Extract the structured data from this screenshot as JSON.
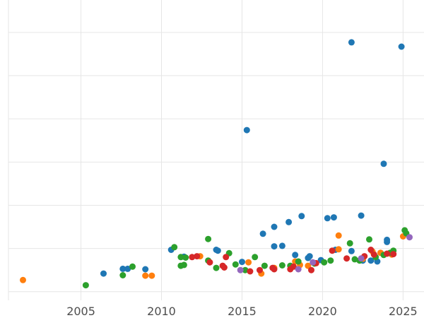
{
  "chart_data": {
    "type": "scatter",
    "title": "",
    "xlabel": "",
    "ylabel": "",
    "xlim": [
      2000.5,
      2026.3
    ],
    "ylim": [
      -0.2,
      6.75
    ],
    "x_ticks": [
      2005,
      2010,
      2015,
      2020,
      2025
    ],
    "x_tick_labels": [
      "2005",
      "2010",
      "2015",
      "2020",
      "2025"
    ],
    "y_gridlines": [
      0,
      1,
      2,
      3,
      4,
      5,
      6
    ],
    "grid": true,
    "legend": "none",
    "series": [
      {
        "color": "#1f77b4",
        "points": [
          [
            2006.4,
            0.42
          ],
          [
            2007.6,
            0.53
          ],
          [
            2007.9,
            0.53
          ],
          [
            2009.0,
            0.52
          ],
          [
            2010.6,
            0.97
          ],
          [
            2011.4,
            0.81
          ],
          [
            2013.4,
            0.97
          ],
          [
            2013.5,
            0.95
          ],
          [
            2015.0,
            0.69
          ],
          [
            2015.3,
            3.74
          ],
          [
            2016.3,
            1.34
          ],
          [
            2017.0,
            1.05
          ],
          [
            2017.0,
            1.5
          ],
          [
            2017.5,
            1.06
          ],
          [
            2017.9,
            1.61
          ],
          [
            2018.3,
            0.85
          ],
          [
            2018.7,
            1.75
          ],
          [
            2019.1,
            0.78
          ],
          [
            2019.2,
            0.82
          ],
          [
            2019.9,
            0.73
          ],
          [
            2020.3,
            1.7
          ],
          [
            2020.7,
            1.72
          ],
          [
            2020.8,
            0.97
          ],
          [
            2021.8,
            0.94
          ],
          [
            2021.8,
            5.77
          ],
          [
            2022.4,
            1.76
          ],
          [
            2022.5,
            0.72
          ],
          [
            2023.0,
            0.72
          ],
          [
            2023.4,
            0.7
          ],
          [
            2023.8,
            2.96
          ],
          [
            2024.0,
            1.15
          ],
          [
            2024.0,
            1.2
          ],
          [
            2024.9,
            5.67
          ]
        ]
      },
      {
        "color": "#ff7f0e",
        "points": [
          [
            2001.4,
            0.27
          ],
          [
            2009.0,
            0.37
          ],
          [
            2009.4,
            0.37
          ],
          [
            2012.4,
            0.82
          ],
          [
            2015.4,
            0.68
          ],
          [
            2016.2,
            0.42
          ],
          [
            2017.0,
            0.55
          ],
          [
            2018.3,
            0.7
          ],
          [
            2018.6,
            0.62
          ],
          [
            2019.1,
            0.6
          ],
          [
            2021.0,
            1.3
          ],
          [
            2021.0,
            0.98
          ],
          [
            2022.5,
            0.76
          ],
          [
            2023.1,
            0.93
          ],
          [
            2023.6,
            0.9
          ],
          [
            2024.3,
            0.86
          ],
          [
            2025.0,
            1.28
          ]
        ]
      },
      {
        "color": "#2ca02c",
        "points": [
          [
            2005.3,
            0.15
          ],
          [
            2007.6,
            0.38
          ],
          [
            2008.2,
            0.58
          ],
          [
            2010.8,
            1.03
          ],
          [
            2011.2,
            0.6
          ],
          [
            2011.2,
            0.8
          ],
          [
            2011.4,
            0.62
          ],
          [
            2011.5,
            0.79
          ],
          [
            2012.9,
            1.22
          ],
          [
            2012.9,
            0.72
          ],
          [
            2013.4,
            0.55
          ],
          [
            2014.2,
            0.89
          ],
          [
            2014.6,
            0.63
          ],
          [
            2015.2,
            0.5
          ],
          [
            2015.8,
            0.8
          ],
          [
            2016.4,
            0.6
          ],
          [
            2017.5,
            0.61
          ],
          [
            2018.0,
            0.6
          ],
          [
            2018.5,
            0.7
          ],
          [
            2019.5,
            0.65
          ],
          [
            2020.1,
            0.68
          ],
          [
            2020.5,
            0.72
          ],
          [
            2021.7,
            1.12
          ],
          [
            2022.0,
            0.75
          ],
          [
            2022.3,
            0.72
          ],
          [
            2022.9,
            1.21
          ],
          [
            2023.3,
            0.8
          ],
          [
            2023.8,
            0.85
          ],
          [
            2024.2,
            0.9
          ],
          [
            2024.4,
            0.95
          ],
          [
            2025.1,
            1.42
          ],
          [
            2025.2,
            1.35
          ]
        ]
      },
      {
        "color": "#d62728",
        "points": [
          [
            2011.9,
            0.8
          ],
          [
            2012.2,
            0.82
          ],
          [
            2013.0,
            0.68
          ],
          [
            2013.8,
            0.6
          ],
          [
            2013.9,
            0.56
          ],
          [
            2014.0,
            0.8
          ],
          [
            2015.5,
            0.47
          ],
          [
            2016.1,
            0.5
          ],
          [
            2016.9,
            0.55
          ],
          [
            2017.0,
            0.52
          ],
          [
            2018.0,
            0.52
          ],
          [
            2018.2,
            0.58
          ],
          [
            2019.3,
            0.5
          ],
          [
            2019.6,
            0.66
          ],
          [
            2020.6,
            0.95
          ],
          [
            2021.5,
            0.77
          ],
          [
            2022.6,
            0.82
          ],
          [
            2023.0,
            0.97
          ],
          [
            2023.2,
            0.86
          ],
          [
            2024.0,
            0.88
          ],
          [
            2024.4,
            0.87
          ]
        ]
      },
      {
        "color": "#9467bd",
        "points": [
          [
            2014.9,
            0.5
          ],
          [
            2018.5,
            0.52
          ],
          [
            2019.4,
            0.68
          ],
          [
            2022.4,
            0.77
          ],
          [
            2025.4,
            1.26
          ]
        ]
      }
    ]
  }
}
